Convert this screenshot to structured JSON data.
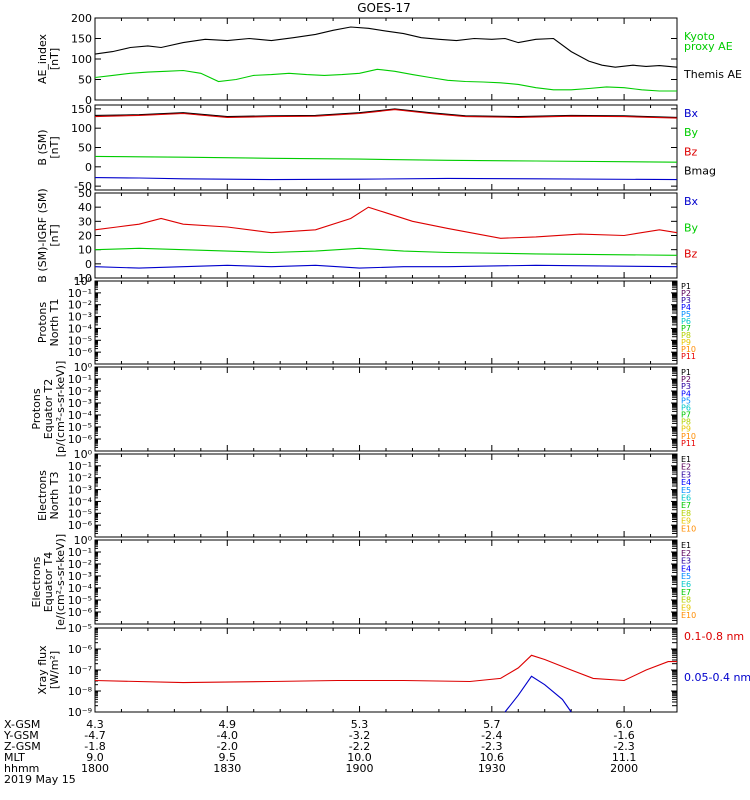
{
  "title": "GOES-17",
  "colors": {
    "black": "#000000",
    "green": "#00cc00",
    "red": "#dd0000",
    "blue": "#0000cc",
    "p_colors": [
      "#000000",
      "#5a005a",
      "#2a00a0",
      "#0000ff",
      "#008cff",
      "#00c8c8",
      "#00c800",
      "#b4d200",
      "#e6c800",
      "#ff8c00",
      "#e60000",
      "#c80000"
    ]
  },
  "panels": [
    {
      "id": "ae",
      "ylabel_lines": [
        "AE_index",
        "[nT]"
      ],
      "ylim": [
        0,
        200
      ],
      "scale": "linear",
      "ticks": [
        0,
        50,
        100,
        150,
        200
      ],
      "legend": [
        {
          "text": "Kyoto",
          "color": "green"
        },
        {
          "text": "proxy AE",
          "color": "green"
        },
        {
          "text": "Themis AE",
          "color": "black"
        }
      ]
    },
    {
      "id": "bsm",
      "ylabel_lines": [
        "B (SM)",
        "[nT]"
      ],
      "ylim": [
        -60,
        160
      ],
      "scale": "linear",
      "ticks": [
        -50,
        0,
        50,
        100,
        150
      ],
      "legend": [
        {
          "text": "Bx",
          "color": "blue"
        },
        {
          "text": "By",
          "color": "green"
        },
        {
          "text": "Bz",
          "color": "red"
        },
        {
          "text": "Bmag",
          "color": "black"
        }
      ]
    },
    {
      "id": "bigrf",
      "ylabel_lines": [
        "B (SM)-IGRF (SM)",
        "[nT]"
      ],
      "ylim": [
        -10,
        50
      ],
      "scale": "linear",
      "ticks": [
        -10,
        0,
        10,
        20,
        30,
        40,
        50
      ],
      "legend": [
        {
          "text": "Bx",
          "color": "blue"
        },
        {
          "text": "By",
          "color": "green"
        },
        {
          "text": "Bz",
          "color": "red"
        }
      ]
    },
    {
      "id": "p1",
      "ylabel_lines": [
        "Protons",
        "North T1"
      ],
      "scale": "log",
      "exp_range": [
        -7,
        0
      ],
      "ticks_exp": [
        -6,
        -5,
        -4,
        -3,
        -2,
        -1,
        0
      ],
      "tick_labels": [
        "10⁻⁶",
        "10⁻⁵",
        "10⁻⁴",
        "10⁻³",
        "10⁻²",
        "10⁻¹",
        "10⁰"
      ],
      "channels": [
        "P1",
        "P2",
        "P3",
        "P4",
        "P5",
        "P6",
        "P7",
        "P8",
        "P9",
        "P10",
        "P11"
      ]
    },
    {
      "id": "p2",
      "ylabel_lines": [
        "Protons",
        "Equator T2",
        "[p/(cm²-s-sr-keV)]"
      ],
      "scale": "log",
      "exp_range": [
        -7,
        0
      ],
      "ticks_exp": [
        -6,
        -5,
        -4,
        -3,
        -2,
        -1,
        0
      ],
      "tick_labels": [
        "10⁻⁶",
        "10⁻⁵",
        "10⁻⁴",
        "10⁻³",
        "10⁻²",
        "10⁻¹",
        "10⁰"
      ],
      "channels": [
        "P1",
        "P2",
        "P3",
        "P4",
        "P5",
        "P6",
        "P7",
        "P8",
        "P9",
        "P10",
        "P11"
      ]
    },
    {
      "id": "e1",
      "ylabel_lines": [
        "Electrons",
        "North T3"
      ],
      "scale": "log",
      "exp_range": [
        -7,
        0
      ],
      "ticks_exp": [
        -6,
        -5,
        -4,
        -3,
        -2,
        -1,
        0
      ],
      "tick_labels": [
        "10⁻⁶",
        "10⁻⁵",
        "10⁻⁴",
        "10⁻³",
        "10⁻²",
        "10⁻¹",
        "10⁰"
      ],
      "channels": [
        "E1",
        "E2",
        "E3",
        "E4",
        "E5",
        "E6",
        "E7",
        "E8",
        "E9",
        "E10"
      ]
    },
    {
      "id": "e2",
      "ylabel_lines": [
        "Electrons",
        "Equator T4",
        "[e/(cm²-s-sr-keV)]"
      ],
      "scale": "log",
      "exp_range": [
        -7,
        0
      ],
      "ticks_exp": [
        -6,
        -5,
        -4,
        -3,
        -2,
        -1,
        0
      ],
      "tick_labels": [
        "10⁻⁶",
        "10⁻⁵",
        "10⁻⁴",
        "10⁻³",
        "10⁻²",
        "10⁻¹",
        "10⁰"
      ],
      "channels": [
        "E1",
        "E2",
        "E3",
        "E4",
        "E5",
        "E6",
        "E7",
        "E8",
        "E9",
        "E10"
      ]
    },
    {
      "id": "xray",
      "ylabel_lines": [
        "Xray flux",
        "[W/m²]"
      ],
      "scale": "log",
      "exp_range": [
        -9,
        -5
      ],
      "ticks_exp": [
        -9,
        -8,
        -7,
        -6,
        -5
      ],
      "tick_labels": [
        "10⁻⁹",
        "10⁻⁸",
        "10⁻⁷",
        "10⁻⁶",
        "10⁻⁵"
      ],
      "legend": [
        {
          "text": "0.1-0.8 nm",
          "color": "red"
        },
        {
          "text": "0.05-0.4 nm",
          "color": "blue"
        }
      ]
    }
  ],
  "chart_data": {
    "type": "line",
    "x_minutes_since_1800": [
      0,
      30,
      60,
      90,
      120
    ],
    "ae_themis": [
      [
        0,
        112
      ],
      [
        4,
        118
      ],
      [
        8,
        128
      ],
      [
        12,
        132
      ],
      [
        15,
        128
      ],
      [
        20,
        140
      ],
      [
        25,
        148
      ],
      [
        30,
        145
      ],
      [
        35,
        150
      ],
      [
        40,
        145
      ],
      [
        45,
        152
      ],
      [
        50,
        160
      ],
      [
        54,
        170
      ],
      [
        58,
        178
      ],
      [
        62,
        175
      ],
      [
        66,
        168
      ],
      [
        70,
        162
      ],
      [
        74,
        152
      ],
      [
        78,
        148
      ],
      [
        82,
        145
      ],
      [
        86,
        150
      ],
      [
        90,
        148
      ],
      [
        93,
        150
      ],
      [
        96,
        140
      ],
      [
        100,
        148
      ],
      [
        104,
        150
      ],
      [
        108,
        118
      ],
      [
        112,
        95
      ],
      [
        115,
        85
      ],
      [
        118,
        80
      ],
      [
        122,
        85
      ],
      [
        125,
        82
      ],
      [
        128,
        84
      ],
      [
        132,
        80
      ]
    ],
    "ae_kyoto": [
      [
        0,
        55
      ],
      [
        4,
        60
      ],
      [
        8,
        65
      ],
      [
        12,
        68
      ],
      [
        16,
        70
      ],
      [
        20,
        72
      ],
      [
        24,
        65
      ],
      [
        28,
        45
      ],
      [
        32,
        50
      ],
      [
        36,
        60
      ],
      [
        40,
        62
      ],
      [
        44,
        65
      ],
      [
        48,
        62
      ],
      [
        52,
        60
      ],
      [
        56,
        62
      ],
      [
        60,
        65
      ],
      [
        64,
        75
      ],
      [
        68,
        70
      ],
      [
        72,
        62
      ],
      [
        76,
        55
      ],
      [
        80,
        48
      ],
      [
        84,
        45
      ],
      [
        88,
        44
      ],
      [
        92,
        42
      ],
      [
        96,
        38
      ],
      [
        100,
        30
      ],
      [
        104,
        25
      ],
      [
        108,
        25
      ],
      [
        112,
        28
      ],
      [
        116,
        32
      ],
      [
        120,
        30
      ],
      [
        124,
        25
      ],
      [
        128,
        22
      ],
      [
        132,
        22
      ]
    ],
    "bsm_bmag": [
      [
        0,
        133
      ],
      [
        10,
        135
      ],
      [
        20,
        140
      ],
      [
        30,
        130
      ],
      [
        40,
        132
      ],
      [
        50,
        133
      ],
      [
        60,
        140
      ],
      [
        68,
        150
      ],
      [
        76,
        140
      ],
      [
        84,
        132
      ],
      [
        96,
        130
      ],
      [
        108,
        133
      ],
      [
        120,
        132
      ],
      [
        132,
        128
      ]
    ],
    "bsm_bz": [
      [
        0,
        130
      ],
      [
        10,
        133
      ],
      [
        20,
        138
      ],
      [
        30,
        128
      ],
      [
        40,
        130
      ],
      [
        50,
        131
      ],
      [
        60,
        138
      ],
      [
        68,
        148
      ],
      [
        76,
        138
      ],
      [
        84,
        130
      ],
      [
        96,
        128
      ],
      [
        108,
        131
      ],
      [
        120,
        130
      ],
      [
        132,
        126
      ]
    ],
    "bsm_by": [
      [
        0,
        27
      ],
      [
        10,
        26
      ],
      [
        20,
        25
      ],
      [
        40,
        22
      ],
      [
        60,
        20
      ],
      [
        80,
        17
      ],
      [
        100,
        15
      ],
      [
        132,
        12
      ]
    ],
    "bsm_bx": [
      [
        0,
        -28
      ],
      [
        10,
        -29
      ],
      [
        20,
        -31
      ],
      [
        40,
        -33
      ],
      [
        60,
        -32
      ],
      [
        80,
        -30
      ],
      [
        100,
        -31
      ],
      [
        132,
        -33
      ]
    ],
    "bigrf_bz": [
      [
        0,
        24
      ],
      [
        5,
        26
      ],
      [
        10,
        28
      ],
      [
        15,
        32
      ],
      [
        20,
        28
      ],
      [
        30,
        26
      ],
      [
        40,
        22
      ],
      [
        50,
        24
      ],
      [
        58,
        32
      ],
      [
        62,
        40
      ],
      [
        66,
        36
      ],
      [
        72,
        30
      ],
      [
        80,
        25
      ],
      [
        92,
        18
      ],
      [
        100,
        19
      ],
      [
        110,
        21
      ],
      [
        120,
        20
      ],
      [
        128,
        24
      ],
      [
        132,
        22
      ]
    ],
    "bigrf_by": [
      [
        0,
        10
      ],
      [
        10,
        11
      ],
      [
        20,
        10
      ],
      [
        30,
        9
      ],
      [
        40,
        8
      ],
      [
        50,
        9
      ],
      [
        60,
        11
      ],
      [
        70,
        9
      ],
      [
        80,
        8
      ],
      [
        100,
        7
      ],
      [
        132,
        6
      ]
    ],
    "bigrf_bx": [
      [
        0,
        -2
      ],
      [
        10,
        -3
      ],
      [
        20,
        -2
      ],
      [
        30,
        -1
      ],
      [
        40,
        -2
      ],
      [
        50,
        -1
      ],
      [
        60,
        -3
      ],
      [
        70,
        -2
      ],
      [
        80,
        -2
      ],
      [
        100,
        -1
      ],
      [
        132,
        -2
      ]
    ],
    "xray_long_exp": [
      [
        0,
        -7.5
      ],
      [
        20,
        -7.6
      ],
      [
        40,
        -7.55
      ],
      [
        55,
        -7.5
      ],
      [
        70,
        -7.5
      ],
      [
        85,
        -7.55
      ],
      [
        92,
        -7.4
      ],
      [
        96,
        -6.9
      ],
      [
        99,
        -6.3
      ],
      [
        102,
        -6.5
      ],
      [
        108,
        -7.0
      ],
      [
        113,
        -7.4
      ],
      [
        120,
        -7.5
      ],
      [
        125,
        -7.0
      ],
      [
        130,
        -6.6
      ],
      [
        132,
        -6.6
      ]
    ],
    "xray_short_exp": [
      [
        93,
        -9
      ],
      [
        96,
        -8.2
      ],
      [
        99,
        -7.3
      ],
      [
        102,
        -7.7
      ],
      [
        106,
        -8.4
      ],
      [
        108,
        -9
      ]
    ]
  },
  "x_axis": {
    "rows": [
      {
        "label": "X-GSM",
        "values": [
          "4.3",
          "4.9",
          "5.3",
          "5.7",
          "6.0"
        ]
      },
      {
        "label": "Y-GSM",
        "values": [
          "-4.7",
          "-4.0",
          "-3.2",
          "-2.4",
          "-1.6"
        ]
      },
      {
        "label": "Z-GSM",
        "values": [
          "-1.8",
          "-2.0",
          "-2.2",
          "-2.3",
          "-2.3"
        ]
      },
      {
        "label": "MLT",
        "values": [
          "9.0",
          "9.5",
          "10.0",
          "10.6",
          "11.1"
        ]
      },
      {
        "label": "hhmm",
        "values": [
          "1800",
          "1830",
          "1900",
          "1930",
          "2000"
        ]
      }
    ],
    "date": "2019 May 15"
  }
}
